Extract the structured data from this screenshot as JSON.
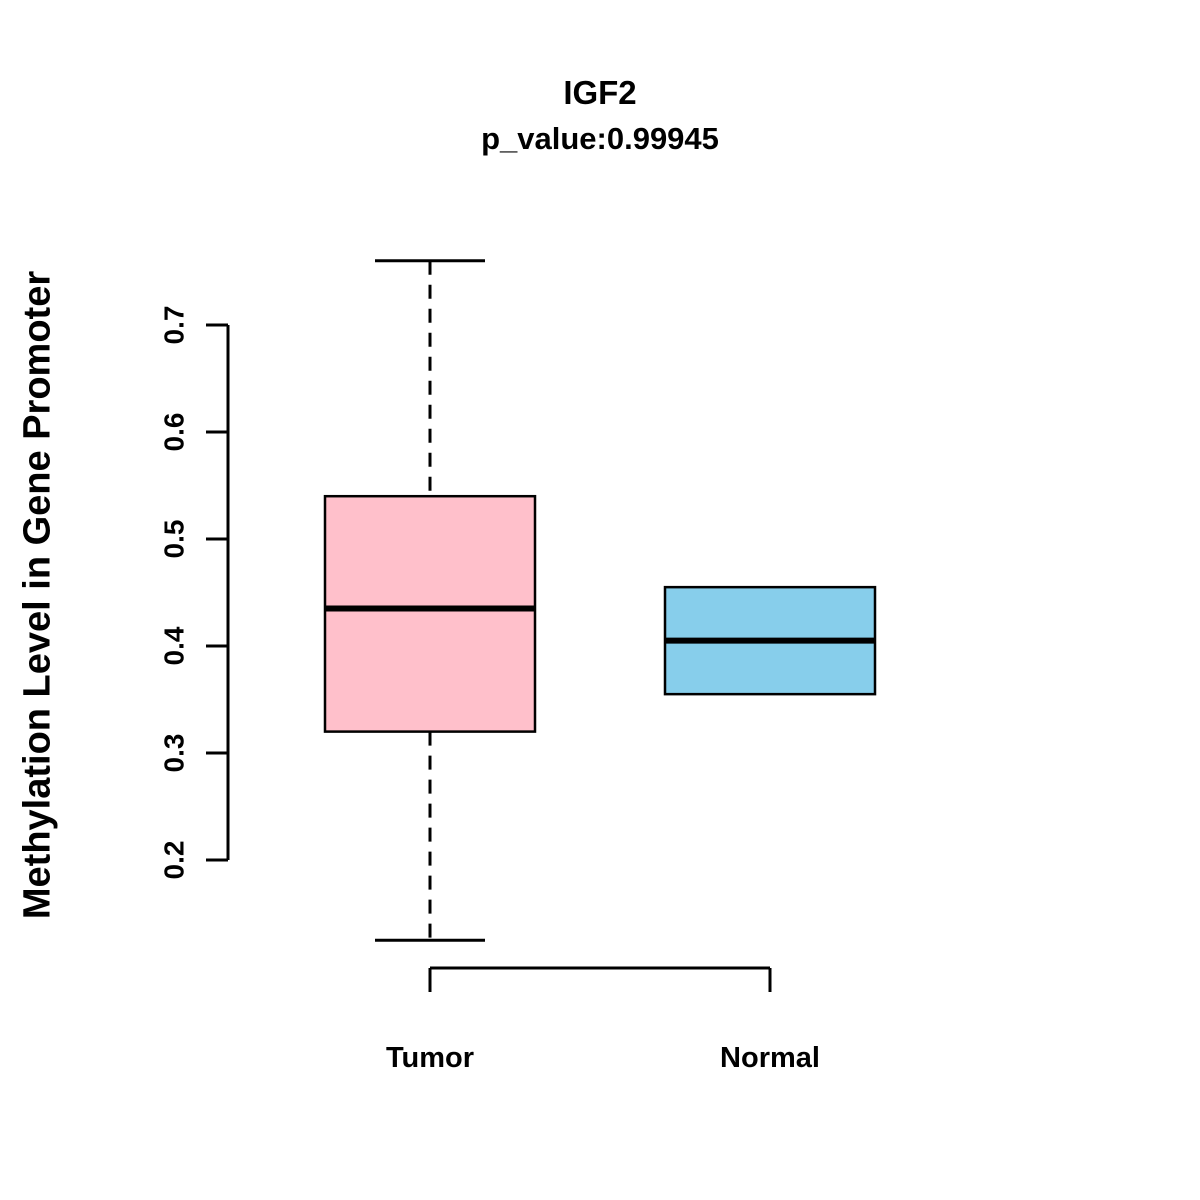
{
  "chart_data": {
    "type": "boxplot",
    "title": "IGF2",
    "subtitle": "p_value:0.99945",
    "ylabel": "Methylation Level in Gene Promoter",
    "xlabel": "",
    "y_ticks": [
      0.2,
      0.3,
      0.4,
      0.5,
      0.6,
      0.7
    ],
    "ylim": [
      0.1,
      0.78
    ],
    "grid": false,
    "legend": "none",
    "categories": [
      "Tumor",
      "Normal"
    ],
    "series": [
      {
        "name": "Tumor",
        "color": "#FFC0CB",
        "whisker_low": 0.125,
        "q1": 0.32,
        "median": 0.435,
        "q3": 0.54,
        "whisker_high": 0.76
      },
      {
        "name": "Normal",
        "color": "#87CEEB",
        "whisker_low": 0.355,
        "q1": 0.355,
        "median": 0.405,
        "q3": 0.455,
        "whisker_high": 0.455
      }
    ]
  },
  "colors": {
    "stroke": "#000000",
    "background": "#FFFFFF"
  }
}
